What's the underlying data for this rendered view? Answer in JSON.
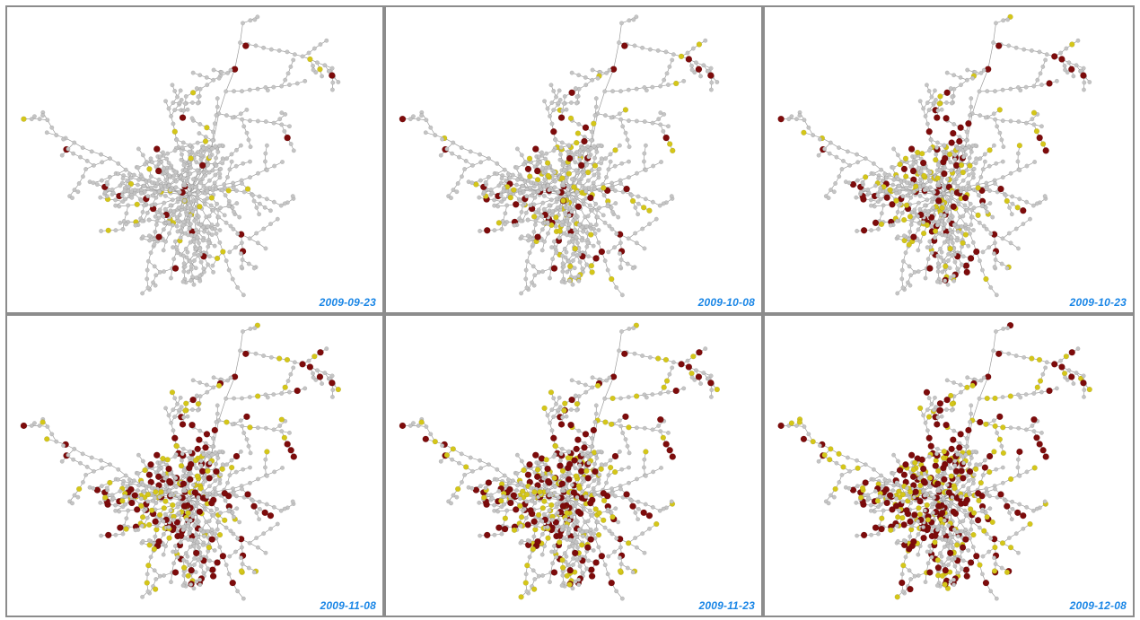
{
  "snapshots": [
    {
      "date": "2009-09-23",
      "stage": 0
    },
    {
      "date": "2009-10-08",
      "stage": 1
    },
    {
      "date": "2009-10-23",
      "stage": 2
    },
    {
      "date": "2009-11-08",
      "stage": 3
    },
    {
      "date": "2009-11-23",
      "stage": 4
    },
    {
      "date": "2009-12-08",
      "stage": 5
    }
  ],
  "colors": {
    "node_default": "#c4c4c4",
    "node_active": "#d4c619",
    "node_highlight": "#7d0b0b",
    "edge": "#9a9a9a",
    "panel_border": "#8c8c8c",
    "date_label": "#1a86e6"
  }
}
